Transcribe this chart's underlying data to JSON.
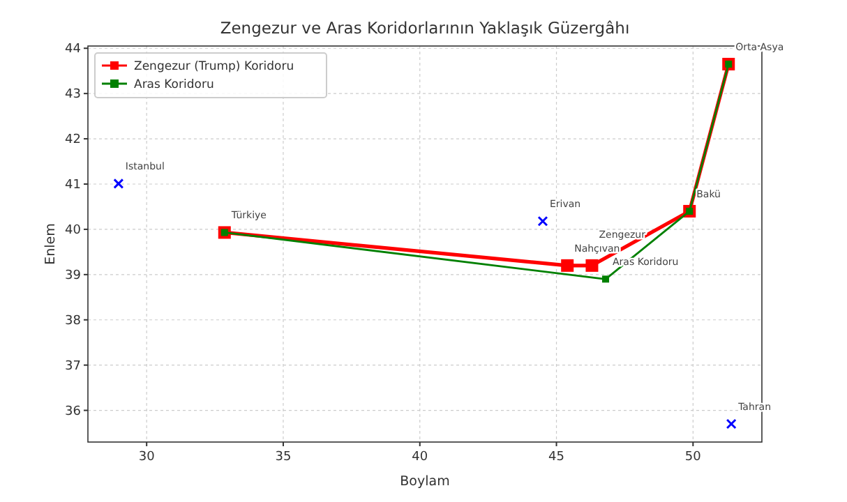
{
  "chart_data": {
    "type": "line",
    "title": "Zengezur ve Aras Koridorlarının Yaklaşık Güzergâhı",
    "xlabel": "Boylam",
    "ylabel": "Enlem",
    "xlim": [
      27.85,
      52.52
    ],
    "xticks": [
      30,
      35,
      40,
      45,
      50
    ],
    "ylim": [
      35.3,
      44.05
    ],
    "yticks": [
      36,
      37,
      38,
      39,
      40,
      41,
      42,
      43,
      44
    ],
    "grid": true,
    "legend": "top left",
    "series": [
      {
        "name": "Zengezur (Trump) Koridoru",
        "color": "#ff0000",
        "marker": "square",
        "x": [
          32.85,
          45.4,
          46.3,
          49.87,
          51.3
        ],
        "values": [
          39.93,
          39.2,
          39.2,
          40.4,
          43.65
        ]
      },
      {
        "name": "Aras Koridoru",
        "color": "#008000",
        "marker": "square",
        "x": [
          32.85,
          46.8,
          49.87,
          51.3
        ],
        "values": [
          39.93,
          38.9,
          40.4,
          43.65
        ]
      },
      {
        "color": "#0000ff",
        "type": "scatter",
        "marker": "cross",
        "x": [
          28.97,
          44.5,
          51.4
        ],
        "values": [
          41.01,
          40.18,
          35.7
        ]
      }
    ],
    "annotations": [
      {
        "text": "Istanbul",
        "x": 28.97,
        "y": 41.01
      },
      {
        "text": "Türkiye",
        "x": 32.85,
        "y": 39.93
      },
      {
        "text": "Erivan",
        "x": 44.5,
        "y": 40.18
      },
      {
        "text": "Nahçıvan",
        "x": 45.4,
        "y": 39.2
      },
      {
        "text": "Zengezur",
        "x": 46.3,
        "y": 39.2
      },
      {
        "text": "Aras Koridoru",
        "x": 46.8,
        "y": 38.9
      },
      {
        "text": "Bakü",
        "x": 49.87,
        "y": 40.4
      },
      {
        "text": "Orta Asya",
        "x": 51.3,
        "y": 43.65
      },
      {
        "text": "Tahran",
        "x": 51.4,
        "y": 35.7
      }
    ]
  }
}
